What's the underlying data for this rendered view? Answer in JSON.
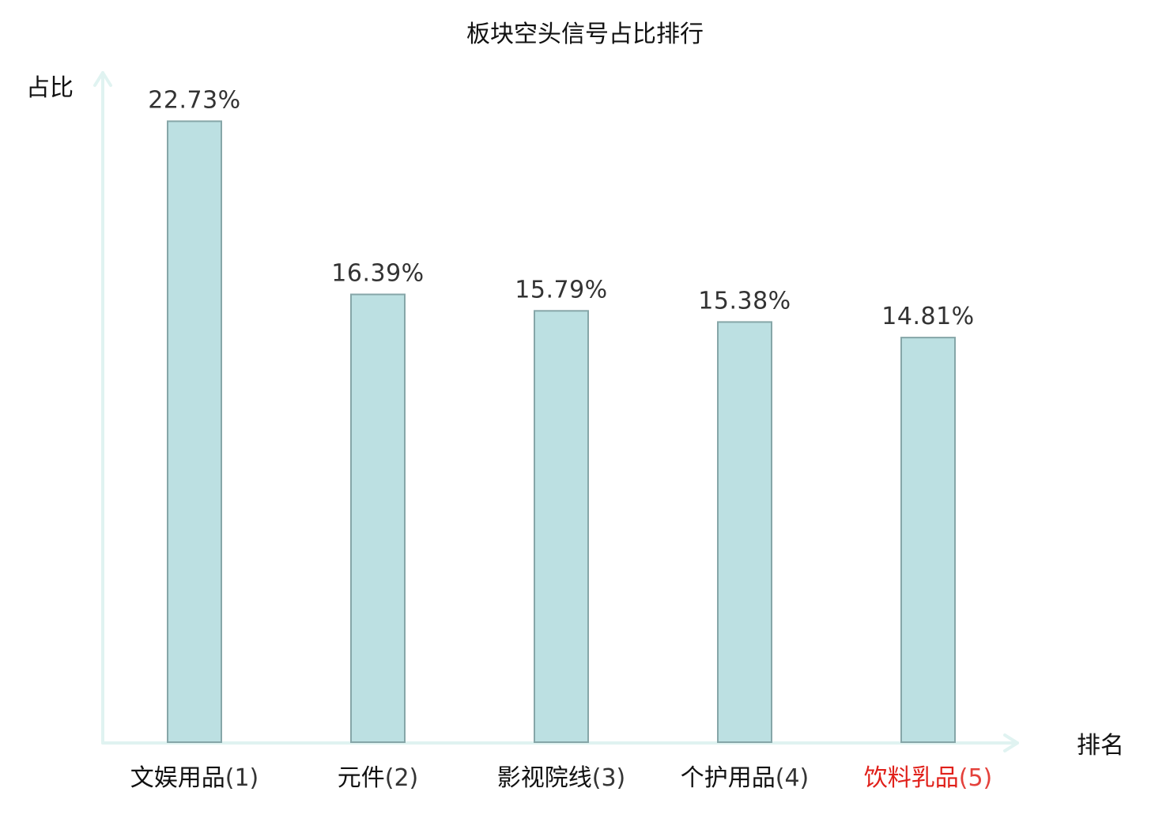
{
  "chart_data": {
    "type": "bar",
    "title": "板块空头信号占比排行",
    "xlabel": "排名",
    "ylabel": "占比",
    "categories": [
      "文娱用品",
      "元件",
      "影视院线",
      "个护用品",
      "饮料乳品"
    ],
    "ranks": [
      "(1)",
      "(2)",
      "(3)",
      "(4)",
      "(5)"
    ],
    "values": [
      22.73,
      16.39,
      15.79,
      15.38,
      14.81
    ],
    "value_labels": [
      "22.73%",
      "16.39%",
      "15.79%",
      "15.38%",
      "14.81%"
    ],
    "ylim": [
      0,
      26.3
    ],
    "grid": false,
    "highlight_index": 4,
    "colors": {
      "bar_fill": "#bce0e2",
      "bar_stroke": "#86a6a8",
      "axis": "#e0f3f1",
      "value_text": "#333333",
      "tick_text": "#111111",
      "highlight_text": "#e0201a"
    }
  }
}
